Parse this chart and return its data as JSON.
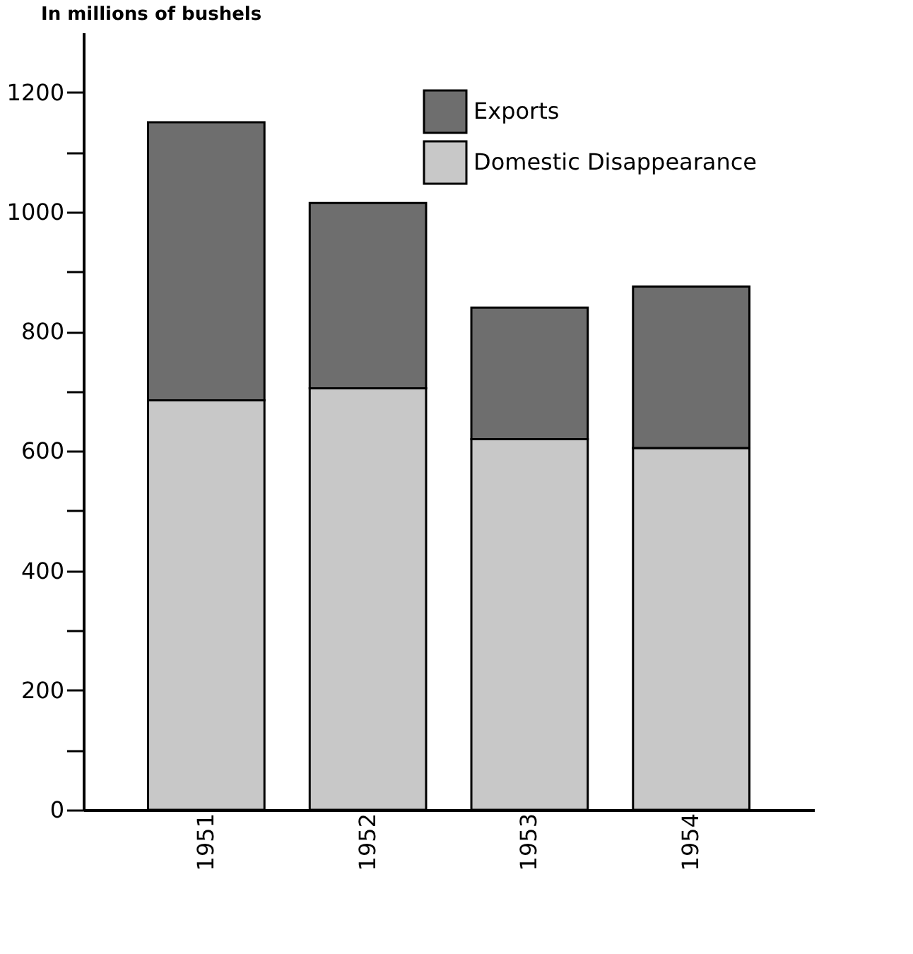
{
  "chart_data": {
    "type": "bar",
    "stacked": true,
    "ylabel": "In millions of bushels",
    "categories": [
      "1951",
      "1952",
      "1953",
      "1954"
    ],
    "series": [
      {
        "name": "Domestic Disappearance",
        "color": "#c8c8c8",
        "values": [
          685,
          705,
          620,
          605
        ]
      },
      {
        "name": "Exports",
        "color": "#6e6e6e",
        "values": [
          465,
          310,
          220,
          270
        ]
      }
    ],
    "ylim": [
      0,
      1300
    ],
    "yticks": [
      0,
      {
        "value": 100,
        "label": null
      },
      200,
      {
        "value": 300,
        "label": null
      },
      400,
      {
        "value": 500,
        "label": null
      },
      600,
      {
        "value": 700,
        "label": null
      },
      800,
      {
        "value": 900,
        "label": null
      },
      1000,
      {
        "value": 1100,
        "label": null
      },
      1200
    ],
    "grid": false,
    "legend": "top right"
  }
}
